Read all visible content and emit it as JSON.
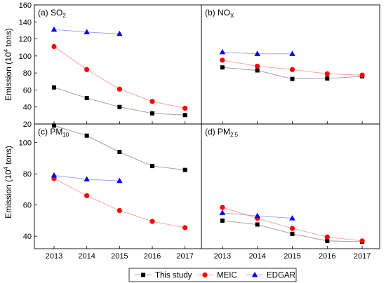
{
  "figure": {
    "ylabel_main": "Emission (10",
    "ylabel_sup": "4",
    "ylabel_tail": " tons)"
  },
  "colors": {
    "this_study": "#000000",
    "meic": "#ff0000",
    "edgar": "#0000ff",
    "this_study_line": "#999999",
    "meic_line": "#ff9999",
    "edgar_line": "#9999ff"
  },
  "legend": {
    "items": [
      {
        "key": "this_study",
        "label": "This study",
        "marker": "square"
      },
      {
        "key": "meic",
        "label": "MEIC",
        "marker": "circle"
      },
      {
        "key": "edgar",
        "label": "EDGAR",
        "marker": "triangle"
      }
    ]
  },
  "chart_data": [
    {
      "type": "line",
      "panel": "a",
      "label_main": "(a) SO",
      "label_sub": "2",
      "x": [
        2013,
        2014,
        2015,
        2016,
        2017
      ],
      "ylim": [
        20,
        160
      ],
      "yticks": [
        20,
        40,
        60,
        80,
        100,
        120,
        140,
        160
      ],
      "series": [
        {
          "key": "this_study",
          "name": "This study",
          "x": [
            2013,
            2014,
            2015,
            2016,
            2017
          ],
          "values": [
            63,
            50.5,
            40,
            32.5,
            30.5
          ]
        },
        {
          "key": "meic",
          "name": "MEIC",
          "x": [
            2013,
            2014,
            2015,
            2016,
            2017
          ],
          "values": [
            111,
            84,
            61,
            46.5,
            38.5
          ]
        },
        {
          "key": "edgar",
          "name": "EDGAR",
          "x": [
            2013,
            2014,
            2015
          ],
          "values": [
            131,
            128,
            126
          ]
        }
      ]
    },
    {
      "type": "line",
      "panel": "b",
      "label_main": "(b) NO",
      "label_sub": "X",
      "x": [
        2013,
        2014,
        2015,
        2016,
        2017
      ],
      "ylim": [
        20,
        160
      ],
      "yticks": [],
      "series": [
        {
          "key": "this_study",
          "name": "This study",
          "x": [
            2013,
            2014,
            2015,
            2016,
            2017
          ],
          "values": [
            86.5,
            83,
            73,
            73.5,
            76
          ]
        },
        {
          "key": "meic",
          "name": "MEIC",
          "x": [
            2013,
            2014,
            2015,
            2016,
            2017
          ],
          "values": [
            95,
            88,
            84,
            79,
            77.5
          ]
        },
        {
          "key": "edgar",
          "name": "EDGAR",
          "x": [
            2013,
            2014,
            2015
          ],
          "values": [
            104.5,
            102.5,
            102.5
          ]
        }
      ]
    },
    {
      "type": "line",
      "panel": "c",
      "label_main": "(c) PM",
      "label_sub": "10",
      "x": [
        2013,
        2014,
        2015,
        2016,
        2017
      ],
      "ylim": [
        32,
        112
      ],
      "yticks": [
        40,
        60,
        80,
        100
      ],
      "series": [
        {
          "key": "this_study",
          "name": "This study",
          "x": [
            2013,
            2014,
            2015,
            2016,
            2017
          ],
          "values": [
            111,
            104.5,
            94,
            85,
            82.5
          ]
        },
        {
          "key": "meic",
          "name": "MEIC",
          "x": [
            2013,
            2014,
            2015,
            2016,
            2017
          ],
          "values": [
            77,
            66,
            56.5,
            49.5,
            45.5
          ]
        },
        {
          "key": "edgar",
          "name": "EDGAR",
          "x": [
            2013,
            2014,
            2015
          ],
          "values": [
            79,
            76.5,
            75.5
          ]
        }
      ]
    },
    {
      "type": "line",
      "panel": "d",
      "label_main": "(d) PM",
      "label_sub": "2.5",
      "x": [
        2013,
        2014,
        2015,
        2016,
        2017
      ],
      "ylim": [
        32,
        112
      ],
      "yticks": [],
      "series": [
        {
          "key": "this_study",
          "name": "This study",
          "x": [
            2013,
            2014,
            2015,
            2016,
            2017
          ],
          "values": [
            50,
            47.5,
            41.5,
            37,
            36.5
          ]
        },
        {
          "key": "meic",
          "name": "MEIC",
          "x": [
            2013,
            2014,
            2015,
            2016,
            2017
          ],
          "values": [
            58.5,
            51.5,
            45,
            39.5,
            37
          ]
        },
        {
          "key": "edgar",
          "name": "EDGAR",
          "x": [
            2013,
            2014,
            2015
          ],
          "values": [
            55,
            53,
            51.5
          ]
        }
      ]
    }
  ],
  "xticks": [
    2013,
    2014,
    2015,
    2016,
    2017
  ]
}
